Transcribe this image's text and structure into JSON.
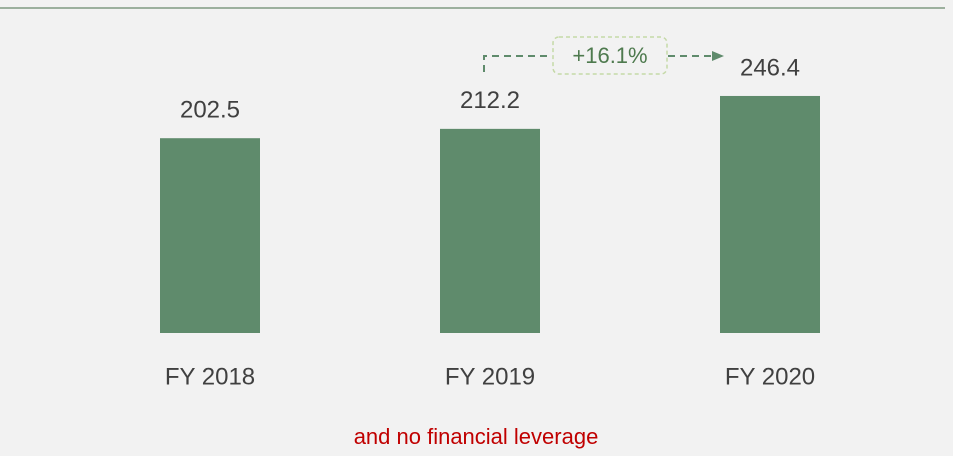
{
  "chart_data": {
    "type": "bar",
    "categories": [
      "FY 2018",
      "FY 2019",
      "FY 2020"
    ],
    "values": [
      202.5,
      212.2,
      246.4
    ],
    "color": "#5f8b6c",
    "annotation": "+16.1%",
    "footnote": "and no financial leverage"
  }
}
